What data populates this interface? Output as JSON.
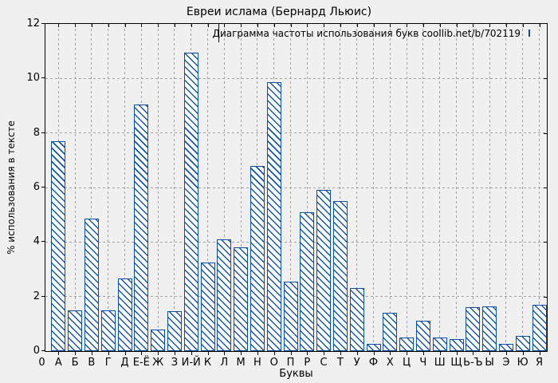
{
  "title": "Евреи ислама (Бернард Льюис)",
  "legend": {
    "label": "Диаграмма частоты использования букв coollib.net/b/702119"
  },
  "axes": {
    "x_label": "Буквы",
    "y_label": "% использования в тексте",
    "y_ticks": [
      0,
      2,
      4,
      6,
      8,
      10,
      12
    ]
  },
  "colors": {
    "background": "#f0f0f0",
    "bar_border": "#0d4da1",
    "bar_hatch": "#1455a8",
    "bar_fill": "#ffffff",
    "grid": "#a0a0a0",
    "axis": "#000000"
  },
  "chart_data": {
    "type": "bar",
    "title": "Евреи ислама (Бернард Льюис)",
    "xlabel": "Буквы",
    "ylabel": "% использования в тексте",
    "ylim": [
      0,
      12
    ],
    "grid": true,
    "legend_position": "top-right",
    "legend": "Диаграмма частоты использования букв coollib.net/b/702119",
    "categories": [
      "0",
      "А",
      "Б",
      "В",
      "Г",
      "Д",
      "Е-Ё",
      "Ж",
      "З",
      "И-Й",
      "К",
      "Л",
      "М",
      "Н",
      "О",
      "П",
      "Р",
      "С",
      "Т",
      "У",
      "Ф",
      "Х",
      "Ц",
      "Ч",
      "Ш",
      "Щ",
      "Ь-Ъ",
      "Ы",
      "Э",
      "Ю",
      "Я"
    ],
    "values": [
      0,
      7.7,
      1.5,
      4.85,
      1.5,
      2.65,
      9.05,
      0.8,
      1.45,
      10.95,
      3.25,
      4.1,
      3.8,
      6.8,
      9.85,
      2.55,
      5.1,
      5.9,
      5.5,
      2.3,
      0.25,
      1.4,
      0.5,
      1.1,
      0.5,
      0.45,
      1.6,
      1.65,
      0.25,
      0.55,
      1.7
    ]
  }
}
